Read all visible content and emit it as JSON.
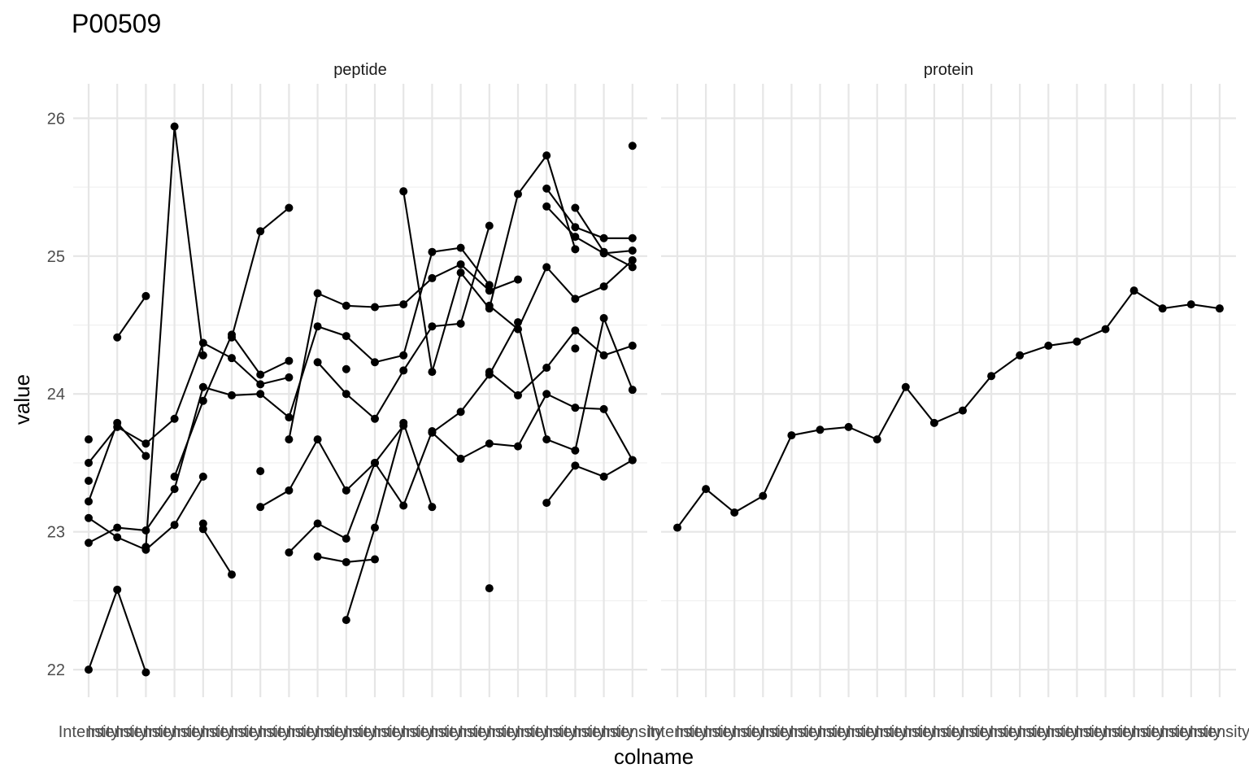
{
  "chart_data": {
    "type": "line",
    "title": "P00509",
    "xlabel": "colname",
    "ylabel": "value",
    "ylim": [
      21.8,
      26.25
    ],
    "yticks": [
      22,
      23,
      24,
      25,
      26
    ],
    "grid": true,
    "x_tick_label": "Intensity",
    "panels": [
      {
        "name": "peptide",
        "n_categories": 20,
        "series": [
          {
            "values": [
              22.0,
              22.58,
              21.98
            ]
          },
          {
            "values": [
              23.67
            ]
          },
          {
            "values": [
              23.22,
              23.79,
              23.55
            ]
          },
          {
            "values": [
              23.5,
              23.76,
              23.64,
              23.82,
              24.37,
              24.26,
              24.07,
              24.12
            ]
          },
          {
            "values": [
              23.37
            ]
          },
          {
            "values": [
              23.1,
              22.96,
              22.87,
              23.05,
              23.4
            ]
          },
          {
            "values": [
              22.92,
              23.03,
              23.01,
              23.31,
              24.05,
              23.99,
              24.0,
              23.83,
              24.49,
              24.42,
              24.23,
              24.28,
              25.03,
              25.06,
              24.79
            ]
          },
          {
            "values": [
              null,
              24.41,
              24.71
            ]
          },
          {
            "values": [
              null,
              null,
              22.89,
              25.94,
              24.28
            ]
          },
          {
            "values": [
              null,
              null,
              null,
              23.4,
              23.95,
              24.43,
              24.14,
              24.24
            ]
          },
          {
            "values": [
              null,
              null,
              null,
              null,
              23.06
            ]
          },
          {
            "values": [
              null,
              null,
              null,
              null,
              23.02,
              22.69
            ]
          },
          {
            "values": [
              null,
              null,
              null,
              null,
              null,
              24.41,
              25.18,
              25.35
            ]
          },
          {
            "values": [
              null,
              null,
              null,
              null,
              null,
              null,
              23.44
            ]
          },
          {
            "values": [
              null,
              null,
              null,
              null,
              null,
              null,
              23.18,
              23.3,
              23.67,
              23.3,
              23.5,
              23.19,
              23.73
            ]
          },
          {
            "values": [
              null,
              null,
              null,
              null,
              null,
              null,
              null,
              23.67,
              24.73,
              24.64,
              24.63,
              24.65,
              24.84,
              24.94,
              24.75,
              24.83
            ]
          },
          {
            "values": [
              null,
              null,
              null,
              null,
              null,
              null,
              null,
              22.85,
              23.06,
              22.95,
              23.5,
              23.77
            ]
          },
          {
            "values": [
              null,
              null,
              null,
              null,
              null,
              null,
              null,
              null,
              24.23,
              24.0,
              23.82,
              24.17,
              24.49,
              24.51,
              25.22
            ]
          },
          {
            "values": [
              null,
              null,
              null,
              null,
              null,
              null,
              null,
              null,
              22.82,
              22.78,
              22.8
            ]
          },
          {
            "values": [
              null,
              null,
              null,
              null,
              null,
              null,
              null,
              null,
              null,
              24.18
            ]
          },
          {
            "values": [
              null,
              null,
              null,
              null,
              null,
              null,
              null,
              null,
              null,
              22.36,
              23.03,
              23.79,
              23.18
            ]
          },
          {
            "values": [
              null,
              null,
              null,
              null,
              null,
              null,
              null,
              null,
              null,
              null,
              null,
              25.47,
              24.16,
              24.88,
              24.62,
              25.45,
              25.73,
              25.05
            ]
          },
          {
            "values": [
              null,
              null,
              null,
              null,
              null,
              null,
              null,
              null,
              null,
              null,
              null,
              null,
              23.72,
              23.53,
              23.64,
              23.62,
              24.0,
              23.9,
              23.89,
              23.52
            ]
          },
          {
            "values": [
              null,
              null,
              null,
              null,
              null,
              null,
              null,
              null,
              null,
              null,
              null,
              null,
              23.72,
              23.87,
              24.14,
              24.52,
              23.67,
              23.59,
              24.55,
              24.03
            ]
          },
          {
            "values": [
              null,
              null,
              null,
              null,
              null,
              null,
              null,
              null,
              null,
              null,
              null,
              null,
              null,
              null,
              22.59
            ]
          },
          {
            "values": [
              null,
              null,
              null,
              null,
              null,
              null,
              null,
              null,
              null,
              null,
              null,
              null,
              null,
              null,
              24.16,
              23.99,
              24.19,
              24.46,
              24.28,
              24.35
            ]
          },
          {
            "values": [
              null,
              null,
              null,
              null,
              null,
              null,
              null,
              null,
              null,
              null,
              null,
              null,
              null,
              null,
              24.64,
              24.47,
              24.92,
              24.69,
              24.78,
              24.97
            ]
          },
          {
            "values": [
              null,
              null,
              null,
              null,
              null,
              null,
              null,
              null,
              null,
              null,
              null,
              null,
              null,
              null,
              null,
              null,
              25.36,
              25.14,
              25.02,
              25.04
            ]
          },
          {
            "values": [
              null,
              null,
              null,
              null,
              null,
              null,
              null,
              null,
              null,
              null,
              null,
              null,
              null,
              null,
              null,
              null,
              25.49,
              25.21,
              25.13,
              25.13
            ]
          },
          {
            "values": [
              null,
              null,
              null,
              null,
              null,
              null,
              null,
              null,
              null,
              null,
              null,
              null,
              null,
              null,
              null,
              null,
              23.21,
              23.48,
              23.4,
              23.52
            ]
          },
          {
            "values": [
              null,
              null,
              null,
              null,
              null,
              null,
              null,
              null,
              null,
              null,
              null,
              null,
              null,
              null,
              null,
              null,
              null,
              25.35,
              25.03,
              24.92
            ]
          },
          {
            "values": [
              null,
              null,
              null,
              null,
              null,
              null,
              null,
              null,
              null,
              null,
              null,
              null,
              null,
              null,
              null,
              null,
              null,
              24.33
            ]
          },
          {
            "values": [
              null,
              null,
              null,
              null,
              null,
              null,
              null,
              null,
              null,
              null,
              null,
              null,
              null,
              null,
              null,
              null,
              null,
              null,
              null,
              25.8
            ]
          }
        ]
      },
      {
        "name": "protein",
        "n_categories": 20,
        "series": [
          {
            "values": [
              23.03,
              23.31,
              23.14,
              23.26,
              23.7,
              23.74,
              23.76,
              23.67,
              24.05,
              23.79,
              23.88,
              24.13,
              24.28,
              24.35,
              24.38,
              24.47,
              24.75,
              24.62,
              24.65,
              24.62
            ]
          }
        ]
      }
    ]
  }
}
